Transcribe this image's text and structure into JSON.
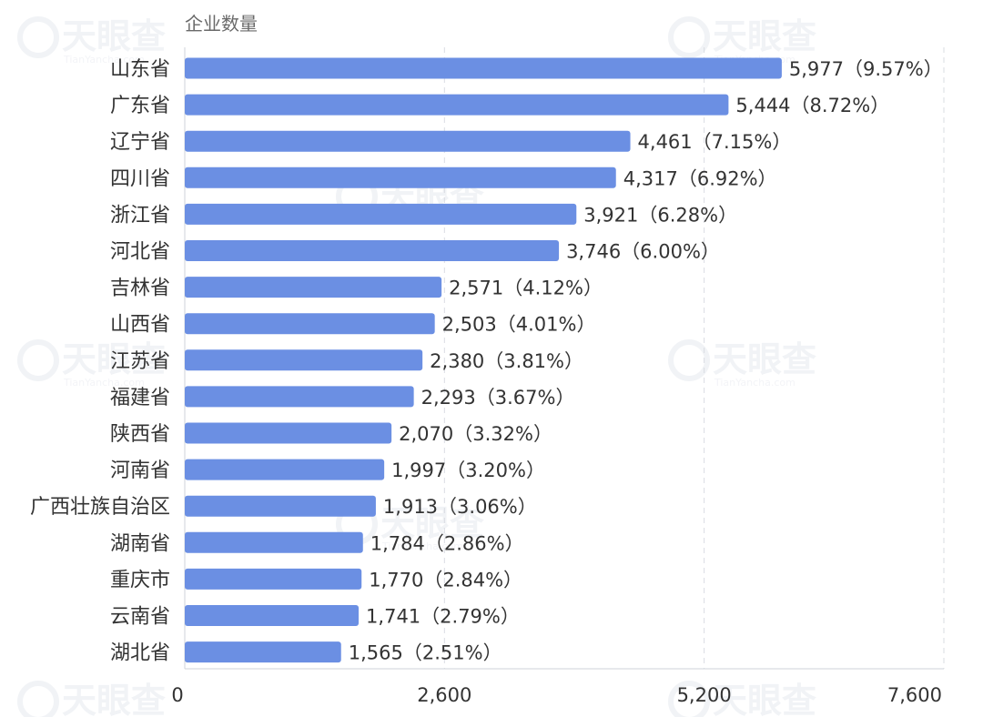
{
  "chart_data": {
    "type": "bar",
    "orientation": "horizontal",
    "title": "企业数量",
    "categories": [
      "山东省",
      "广东省",
      "辽宁省",
      "四川省",
      "浙江省",
      "河北省",
      "吉林省",
      "山西省",
      "江苏省",
      "福建省",
      "陕西省",
      "河南省",
      "广西壮族自治区",
      "湖南省",
      "重庆市",
      "云南省",
      "湖北省"
    ],
    "values": [
      5977,
      5444,
      4461,
      4317,
      3921,
      3746,
      2571,
      2503,
      2380,
      2293,
      2070,
      1997,
      1913,
      1784,
      1770,
      1741,
      1565
    ],
    "labels": [
      "5,977（9.57%）",
      "5,444（8.72%）",
      "4,461（7.15%）",
      "4,317（6.92%）",
      "3,921（6.28%）",
      "3,746（6.00%）",
      "2,571（4.12%）",
      "2,503（4.01%）",
      "2,380（3.81%）",
      "2,293（3.67%）",
      "2,070（3.32%）",
      "1,997（3.20%）",
      "1,913（3.06%）",
      "1,784（2.86%）",
      "1,770（2.84%）",
      "1,741（2.79%）",
      "1,565（2.51%）"
    ],
    "xlim": [
      0,
      7600
    ],
    "xticks": [
      0,
      2600,
      5200,
      7600
    ],
    "xtick_labels": [
      "0",
      "2,600",
      "5,200",
      "7,600"
    ],
    "grid": true,
    "bar_color": "#6b8fe3"
  },
  "watermark": {
    "text": "天眼查",
    "sub": "TianYancha.com"
  }
}
